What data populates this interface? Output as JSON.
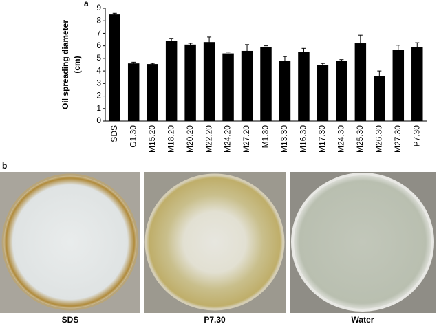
{
  "chart_data": {
    "type": "bar",
    "panel_label": "a",
    "y_label": [
      "Oil spreading diameter",
      "(cm)"
    ],
    "categories": [
      "SDS",
      "G1.30",
      "M15.20",
      "M18.20",
      "M20.20",
      "M22.20",
      "M24.20",
      "M27.20",
      "M1.30",
      "M13.30",
      "M16.30",
      "M17.30",
      "M24.30",
      "M25.30",
      "M26.30",
      "M27.30",
      "P7.30"
    ],
    "values": [
      8.5,
      4.6,
      4.55,
      6.4,
      6.1,
      6.3,
      5.4,
      5.6,
      5.9,
      4.8,
      5.5,
      4.45,
      4.8,
      6.2,
      3.6,
      5.7,
      5.9
    ],
    "errors": [
      0.1,
      0.1,
      0.05,
      0.2,
      0.1,
      0.4,
      0.1,
      0.5,
      0.1,
      0.35,
      0.3,
      0.15,
      0.1,
      0.65,
      0.4,
      0.35,
      0.35
    ],
    "color": "#000000",
    "ylim": [
      0,
      9
    ],
    "yticks": [
      0,
      1,
      2,
      3,
      4,
      5,
      6,
      7,
      8,
      9
    ],
    "grid": false
  },
  "photos": {
    "panel_label": "b",
    "captions": [
      "SDS",
      "P7.30",
      "Water"
    ]
  }
}
